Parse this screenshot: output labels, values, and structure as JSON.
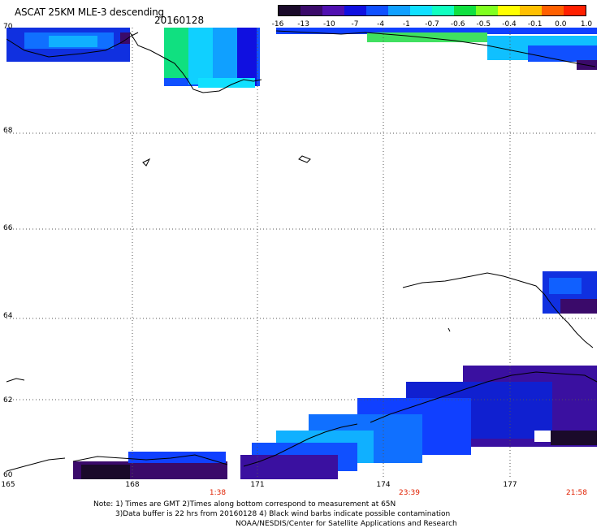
{
  "header": {
    "title": "ASCAT 25KM MLE-3 descending",
    "date": "20160128"
  },
  "colorbar": {
    "ticks": [
      "-16",
      "-13",
      "-10",
      "-7",
      "-4",
      "-1",
      "-0.7",
      "-0.6",
      "-0.5",
      "-0.4",
      "-0.1",
      "0.0",
      "1.0"
    ],
    "colors": [
      "#1a0a2a",
      "#3a0a6a",
      "#5010b0",
      "#1010e0",
      "#1050ff",
      "#10a0ff",
      "#10e0ff",
      "#10ffc0",
      "#10e040",
      "#80ff20",
      "#ffff00",
      "#ffc000",
      "#ff6000",
      "#ff2000"
    ]
  },
  "axes": {
    "lat_labels": [
      "70",
      "68",
      "66",
      "64",
      "62",
      "60"
    ],
    "lon_labels": [
      "165",
      "168",
      "171",
      "174",
      "177"
    ],
    "time_labels": [
      "1:38",
      "23:39",
      "21:58"
    ]
  },
  "notes": {
    "line1": "Note: 1) Times are GMT 2)Times along bottom correspond to measurement at 65N",
    "line2": "3)Data buffer is 22 hrs from 20160128 4) Black wind barbs indicate possible contamination",
    "line3": "NOAA/NESDIS/Center for Satellite Applications and Research"
  }
}
